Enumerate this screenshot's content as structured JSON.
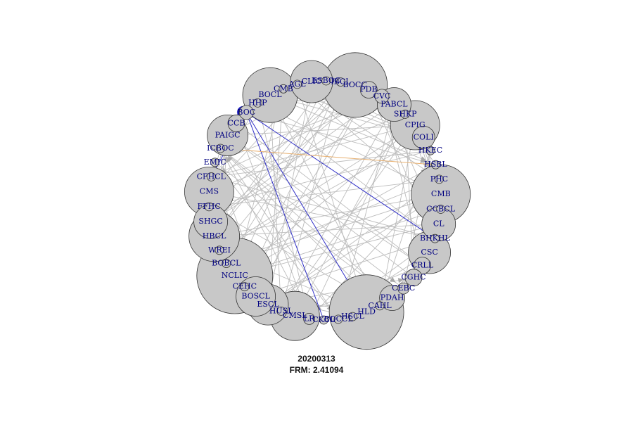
{
  "figure": {
    "date": "20200313",
    "frm_label": "FRM: 2.41094",
    "colors": {
      "node_fill": "#c8c8c8",
      "label": "#000080",
      "edge": "#bdbdbd",
      "highlight": "#3030c8",
      "highlight_alt": "#e8b070"
    }
  },
  "network": {
    "type": "directed-network",
    "highlighted_node": "BOC",
    "nodes": [
      {
        "label": "BOCC",
        "size": 46
      },
      {
        "label": "PDB",
        "size": 12
      },
      {
        "label": "CVC",
        "size": 10
      },
      {
        "label": "PABCL",
        "size": 24
      },
      {
        "label": "SHKP",
        "size": 6
      },
      {
        "label": "CPIG",
        "size": 35
      },
      {
        "label": "COLI",
        "size": 16
      },
      {
        "label": "HKEC",
        "size": 6
      },
      {
        "label": "HSBL",
        "size": 6
      },
      {
        "label": "PHC",
        "size": 6
      },
      {
        "label": "CMB",
        "size": 42
      },
      {
        "label": "CCBCL",
        "size": 6
      },
      {
        "label": "CL",
        "size": 24
      },
      {
        "label": "BHKHL",
        "size": 6
      },
      {
        "label": "CSC",
        "size": 30
      },
      {
        "label": "CRLL",
        "size": 12
      },
      {
        "label": "CGHC",
        "size": 12
      },
      {
        "label": "CEBC",
        "size": 8
      },
      {
        "label": "PDAH",
        "size": 18
      },
      {
        "label": "CAHL",
        "size": 6
      },
      {
        "label": "HLD",
        "size": 53
      },
      {
        "label": "HSCL",
        "size": 6
      },
      {
        "label": "BOCCL",
        "size": 6
      },
      {
        "label": "CKCL",
        "size": 6
      },
      {
        "label": "LR",
        "size": 8
      },
      {
        "label": "CMSL",
        "size": 35
      },
      {
        "label": "HUSL",
        "size": 6
      },
      {
        "label": "ESCL",
        "size": 29
      },
      {
        "label": "BOSCL",
        "size": 28
      },
      {
        "label": "CEHC",
        "size": 6
      },
      {
        "label": "NCLIC",
        "size": 54
      },
      {
        "label": "BOBCL",
        "size": 6
      },
      {
        "label": "WREI",
        "size": 6
      },
      {
        "label": "HBCL",
        "size": 36
      },
      {
        "label": "SHGC",
        "size": 24
      },
      {
        "label": "FFHC",
        "size": 6
      },
      {
        "label": "CMS",
        "size": 35
      },
      {
        "label": "CFHCL",
        "size": 6
      },
      {
        "label": "EMIC",
        "size": 6
      },
      {
        "label": "ICBOC",
        "size": 6
      },
      {
        "label": "PAIGC",
        "size": 29
      },
      {
        "label": "CCB",
        "size": 12
      },
      {
        "label": "BOC",
        "size": 10
      },
      {
        "label": "HHP",
        "size": 6
      },
      {
        "label": "BOCL",
        "size": 39
      },
      {
        "label": "CMB",
        "size": 6
      },
      {
        "label": "AGL",
        "size": 6
      },
      {
        "label": "CLIC",
        "size": 30
      },
      {
        "label": "ESBOC",
        "size": 6
      },
      {
        "label": "IBCL",
        "size": 6
      }
    ]
  }
}
